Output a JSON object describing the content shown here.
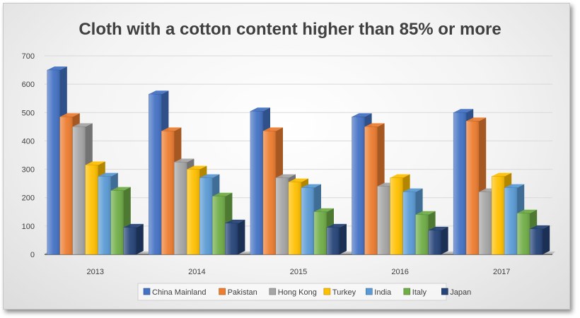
{
  "chart_data": {
    "type": "bar",
    "title": "Cloth with a cotton content higher than 85% or more",
    "xlabel": "",
    "ylabel": "",
    "categories": [
      "2013",
      "2014",
      "2015",
      "2016",
      "2017"
    ],
    "ylim": [
      0,
      700
    ],
    "yticks": [
      0,
      100,
      200,
      300,
      400,
      500,
      600,
      700
    ],
    "grid": true,
    "legend_position": "bottom",
    "series": [
      {
        "name": "China Mainland",
        "values": [
          650,
          565,
          505,
          485,
          500
        ],
        "color": "#4472C4"
      },
      {
        "name": "Pakistan",
        "values": [
          485,
          435,
          435,
          450,
          470
        ],
        "color": "#ED7D31"
      },
      {
        "name": "Hong Kong",
        "values": [
          450,
          325,
          270,
          240,
          220
        ],
        "color": "#A5A5A5"
      },
      {
        "name": "Turkey",
        "values": [
          315,
          300,
          255,
          270,
          275
        ],
        "color": "#FFC000"
      },
      {
        "name": "India",
        "values": [
          275,
          270,
          235,
          220,
          235
        ],
        "color": "#5B9BD5"
      },
      {
        "name": "Italy",
        "values": [
          225,
          205,
          150,
          140,
          145
        ],
        "color": "#70AD47"
      },
      {
        "name": "Japan",
        "values": [
          95,
          110,
          95,
          85,
          90
        ],
        "color": "#264478"
      }
    ]
  }
}
